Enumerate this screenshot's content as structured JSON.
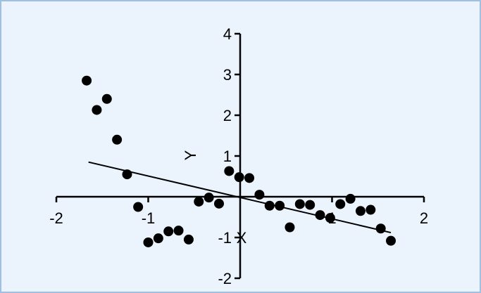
{
  "chart_data": {
    "type": "scatter",
    "title": "",
    "xlabel": "X",
    "ylabel": "Y",
    "xlim": [
      -2,
      2
    ],
    "ylim": [
      -2,
      4
    ],
    "x_ticks": [
      -2,
      -1,
      1,
      2
    ],
    "y_ticks": [
      -2,
      -1,
      1,
      2,
      3,
      4
    ],
    "x_tick_labels": [
      "-2",
      "-1",
      "1",
      "2"
    ],
    "y_tick_labels": [
      "-2",
      "-1",
      "1",
      "2",
      "3",
      "4"
    ],
    "grid": false,
    "legend": "none",
    "points": [
      {
        "x": -1.67,
        "y": 2.85
      },
      {
        "x": -1.56,
        "y": 2.13
      },
      {
        "x": -1.45,
        "y": 2.4
      },
      {
        "x": -1.34,
        "y": 1.4
      },
      {
        "x": -1.23,
        "y": 0.55
      },
      {
        "x": -1.11,
        "y": -0.25
      },
      {
        "x": -1.0,
        "y": -1.12
      },
      {
        "x": -0.89,
        "y": -1.02
      },
      {
        "x": -0.78,
        "y": -0.85
      },
      {
        "x": -0.67,
        "y": -0.83
      },
      {
        "x": -0.56,
        "y": -1.05
      },
      {
        "x": -0.45,
        "y": -0.12
      },
      {
        "x": -0.34,
        "y": -0.02
      },
      {
        "x": -0.23,
        "y": -0.17
      },
      {
        "x": -0.12,
        "y": 0.63
      },
      {
        "x": -0.01,
        "y": 0.48
      },
      {
        "x": 0.1,
        "y": 0.46
      },
      {
        "x": 0.21,
        "y": 0.05
      },
      {
        "x": 0.32,
        "y": -0.22
      },
      {
        "x": 0.43,
        "y": -0.22
      },
      {
        "x": 0.54,
        "y": -0.75
      },
      {
        "x": 0.65,
        "y": -0.18
      },
      {
        "x": 0.76,
        "y": -0.2
      },
      {
        "x": 0.87,
        "y": -0.45
      },
      {
        "x": 0.98,
        "y": -0.52
      },
      {
        "x": 1.09,
        "y": -0.18
      },
      {
        "x": 1.2,
        "y": -0.05
      },
      {
        "x": 1.31,
        "y": -0.35
      },
      {
        "x": 1.42,
        "y": -0.32
      },
      {
        "x": 1.53,
        "y": -0.78
      },
      {
        "x": 1.64,
        "y": -1.08
      }
    ],
    "fit_line": {
      "x1": -1.65,
      "y1": 0.85,
      "x2": 1.64,
      "y2": -0.88
    }
  },
  "colors": {
    "background": "#ebf3fc",
    "border": "#9fbfe3",
    "ink": "#000000"
  }
}
